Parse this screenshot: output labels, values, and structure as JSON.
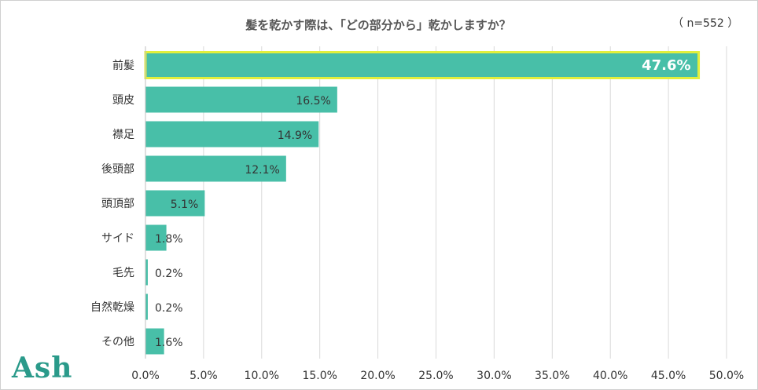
{
  "sample_note": "（ n=552 ）",
  "logo_text": "Ash",
  "colors": {
    "bar": "#48bfa8",
    "highlight_border": "#e2ef3c",
    "grid": "#d9d9d9",
    "text": "#333333",
    "logo": "#2a9a8a"
  },
  "chart_data": {
    "type": "bar",
    "orientation": "horizontal",
    "title": "髪を乾かす際は、「どの部分から」乾かしますか？",
    "categories": [
      "前髪",
      "頭皮",
      "襟足",
      "後頭部",
      "頭頂部",
      "サイド",
      "毛先",
      "自然乾燥",
      "その他"
    ],
    "values": [
      47.6,
      16.5,
      14.9,
      12.1,
      5.1,
      1.8,
      0.2,
      0.2,
      1.6
    ],
    "data_labels": [
      "47.6%",
      "16.5%",
      "14.9%",
      "12.1%",
      "5.1%",
      "1.8%",
      "0.2%",
      "0.2%",
      "1.6%"
    ],
    "xlim": [
      0,
      50
    ],
    "x_ticks": [
      0,
      5,
      10,
      15,
      20,
      25,
      30,
      35,
      40,
      45,
      50
    ],
    "x_tick_labels": [
      "0.0%",
      "5.0%",
      "10.0%",
      "15.0%",
      "20.0%",
      "25.0%",
      "30.0%",
      "35.0%",
      "40.0%",
      "45.0%",
      "50.0%"
    ],
    "highlighted_category": "前髪",
    "grid": true
  }
}
